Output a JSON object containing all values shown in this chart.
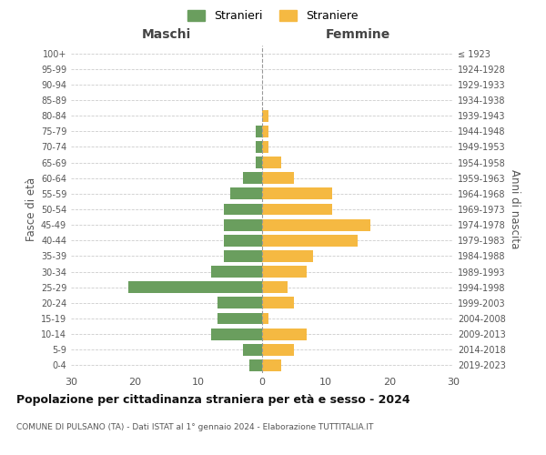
{
  "age_groups": [
    "0-4",
    "5-9",
    "10-14",
    "15-19",
    "20-24",
    "25-29",
    "30-34",
    "35-39",
    "40-44",
    "45-49",
    "50-54",
    "55-59",
    "60-64",
    "65-69",
    "70-74",
    "75-79",
    "80-84",
    "85-89",
    "90-94",
    "95-99",
    "100+"
  ],
  "birth_years": [
    "2019-2023",
    "2014-2018",
    "2009-2013",
    "2004-2008",
    "1999-2003",
    "1994-1998",
    "1989-1993",
    "1984-1988",
    "1979-1983",
    "1974-1978",
    "1969-1973",
    "1964-1968",
    "1959-1963",
    "1954-1958",
    "1949-1953",
    "1944-1948",
    "1939-1943",
    "1934-1938",
    "1929-1933",
    "1924-1928",
    "≤ 1923"
  ],
  "males": [
    2,
    3,
    8,
    7,
    7,
    21,
    8,
    6,
    6,
    6,
    6,
    5,
    3,
    1,
    1,
    1,
    0,
    0,
    0,
    0,
    0
  ],
  "females": [
    3,
    5,
    7,
    1,
    5,
    4,
    7,
    8,
    15,
    17,
    11,
    11,
    5,
    3,
    1,
    1,
    1,
    0,
    0,
    0,
    0
  ],
  "male_color": "#6a9e5e",
  "female_color": "#f5b942",
  "title": "Popolazione per cittadinanza straniera per età e sesso - 2024",
  "subtitle": "COMUNE DI PULSANO (TA) - Dati ISTAT al 1° gennaio 2024 - Elaborazione TUTTITALIA.IT",
  "xlabel_left": "Maschi",
  "xlabel_right": "Femmine",
  "ylabel_left": "Fasce di età",
  "ylabel_right": "Anni di nascita",
  "legend_stranieri": "Stranieri",
  "legend_straniere": "Straniere",
  "xlim": 30,
  "background_color": "#ffffff",
  "grid_color": "#cccccc"
}
